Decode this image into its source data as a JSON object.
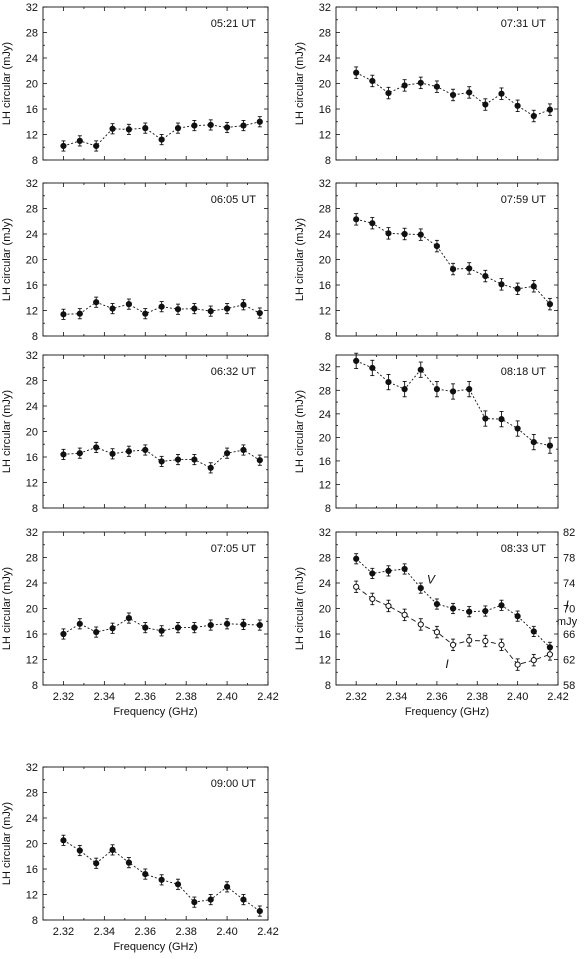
{
  "chart_data": [
    {
      "type": "line",
      "title": "05:21 UT",
      "xlabel": "",
      "ylabel": "LH circular (mJy)",
      "xlim": [
        2.31,
        2.42
      ],
      "ylim": [
        8,
        32
      ],
      "yticks": [
        8,
        12,
        16,
        20,
        24,
        28,
        32
      ],
      "xticks": [],
      "x": [
        2.32,
        2.328,
        2.336,
        2.344,
        2.352,
        2.36,
        2.368,
        2.376,
        2.384,
        2.392,
        2.4,
        2.408,
        2.416
      ],
      "series": [
        {
          "values": [
            10.2,
            11.0,
            10.2,
            12.9,
            12.8,
            13.0,
            11.2,
            13.0,
            13.4,
            13.5,
            13.1,
            13.4,
            14.0
          ],
          "err": [
            0.8,
            0.8,
            0.8,
            0.8,
            0.8,
            0.8,
            0.8,
            0.8,
            0.8,
            0.8,
            0.8,
            0.8,
            0.8
          ],
          "marker": "filled",
          "line": "dotted"
        }
      ]
    },
    {
      "type": "line",
      "title": "07:31 UT",
      "xlabel": "",
      "ylabel": "LH circular (mJy)",
      "xlim": [
        2.31,
        2.42
      ],
      "ylim": [
        8,
        32
      ],
      "yticks": [
        8,
        12,
        16,
        20,
        24,
        28,
        32
      ],
      "xticks": [],
      "x": [
        2.32,
        2.328,
        2.336,
        2.344,
        2.352,
        2.36,
        2.368,
        2.376,
        2.384,
        2.392,
        2.4,
        2.408,
        2.416
      ],
      "series": [
        {
          "values": [
            21.7,
            20.4,
            18.5,
            19.7,
            20.1,
            19.5,
            18.2,
            18.6,
            16.7,
            18.4,
            16.5,
            14.9,
            15.9
          ],
          "err": [
            0.9,
            0.9,
            0.9,
            0.9,
            0.9,
            0.9,
            0.9,
            0.9,
            0.9,
            0.9,
            0.9,
            0.9,
            0.9
          ],
          "marker": "filled",
          "line": "dotted"
        }
      ]
    },
    {
      "type": "line",
      "title": "06:05 UT",
      "xlabel": "",
      "ylabel": "LH circular (mJy)",
      "xlim": [
        2.31,
        2.42
      ],
      "ylim": [
        8,
        32
      ],
      "yticks": [
        8,
        12,
        16,
        20,
        24,
        28,
        32
      ],
      "xticks": [],
      "x": [
        2.32,
        2.328,
        2.336,
        2.344,
        2.352,
        2.36,
        2.368,
        2.376,
        2.384,
        2.392,
        2.4,
        2.408,
        2.416
      ],
      "series": [
        {
          "values": [
            11.4,
            11.5,
            13.3,
            12.3,
            13.0,
            11.5,
            12.6,
            12.2,
            12.3,
            11.9,
            12.3,
            12.9,
            11.6
          ],
          "err": [
            0.8,
            0.8,
            0.8,
            0.8,
            0.8,
            0.8,
            0.8,
            0.8,
            0.8,
            0.8,
            0.8,
            0.8,
            0.8
          ],
          "marker": "filled",
          "line": "dotted"
        }
      ]
    },
    {
      "type": "line",
      "title": "07:59 UT",
      "xlabel": "",
      "ylabel": "LH circular (mJy)",
      "xlim": [
        2.31,
        2.42
      ],
      "ylim": [
        8,
        32
      ],
      "yticks": [
        8,
        12,
        16,
        20,
        24,
        28,
        32
      ],
      "xticks": [],
      "x": [
        2.32,
        2.328,
        2.336,
        2.344,
        2.352,
        2.36,
        2.368,
        2.376,
        2.384,
        2.392,
        2.4,
        2.408,
        2.416
      ],
      "series": [
        {
          "values": [
            26.3,
            25.7,
            24.1,
            24.0,
            23.9,
            22.1,
            18.5,
            18.6,
            17.4,
            16.1,
            15.4,
            15.8,
            13.0
          ],
          "err": [
            0.9,
            0.9,
            0.9,
            0.9,
            0.9,
            0.9,
            0.9,
            0.9,
            0.9,
            0.9,
            0.9,
            0.9,
            0.9
          ],
          "marker": "filled",
          "line": "dotted"
        }
      ]
    },
    {
      "type": "line",
      "title": "06:32 UT",
      "xlabel": "",
      "ylabel": "LH circular (mJy)",
      "xlim": [
        2.31,
        2.42
      ],
      "ylim": [
        8,
        32
      ],
      "yticks": [
        8,
        12,
        16,
        20,
        24,
        28,
        32
      ],
      "xticks": [],
      "x": [
        2.32,
        2.328,
        2.336,
        2.344,
        2.352,
        2.36,
        2.368,
        2.376,
        2.384,
        2.392,
        2.4,
        2.408,
        2.416
      ],
      "series": [
        {
          "values": [
            16.4,
            16.6,
            17.5,
            16.5,
            16.9,
            17.1,
            15.3,
            15.6,
            15.6,
            14.3,
            16.6,
            17.1,
            15.5
          ],
          "err": [
            0.8,
            0.8,
            0.8,
            0.8,
            0.8,
            0.8,
            0.8,
            0.8,
            0.8,
            0.8,
            0.8,
            0.8,
            0.8
          ],
          "marker": "filled",
          "line": "dotted"
        }
      ]
    },
    {
      "type": "line",
      "title": "08:18 UT",
      "xlabel": "",
      "ylabel": "LH circular (mJy)",
      "xlim": [
        2.31,
        2.42
      ],
      "ylim": [
        8,
        34
      ],
      "yticks": [
        8,
        12,
        16,
        20,
        24,
        28,
        32
      ],
      "xticks": [],
      "x": [
        2.32,
        2.328,
        2.336,
        2.344,
        2.352,
        2.36,
        2.368,
        2.376,
        2.384,
        2.392,
        2.4,
        2.408,
        2.416
      ],
      "series": [
        {
          "values": [
            33.0,
            31.8,
            29.4,
            28.2,
            31.5,
            28.2,
            27.8,
            28.2,
            23.2,
            23.1,
            21.5,
            19.2,
            18.6
          ],
          "err": [
            1.3,
            1.3,
            1.3,
            1.3,
            1.3,
            1.3,
            1.3,
            1.3,
            1.3,
            1.3,
            1.3,
            1.3,
            1.3
          ],
          "marker": "filled",
          "line": "dotted"
        }
      ]
    },
    {
      "type": "line",
      "title": "07:05 UT",
      "xlabel": "Frequency (GHz)",
      "ylabel": "LH circular (mJy)",
      "xlim": [
        2.31,
        2.42
      ],
      "ylim": [
        8,
        32
      ],
      "yticks": [
        8,
        12,
        16,
        20,
        24,
        28,
        32
      ],
      "xticks": [
        "2.32",
        "2.34",
        "2.36",
        "2.38",
        "2.40",
        "2.42"
      ],
      "x": [
        2.32,
        2.328,
        2.336,
        2.344,
        2.352,
        2.36,
        2.368,
        2.376,
        2.384,
        2.392,
        2.4,
        2.408,
        2.416
      ],
      "series": [
        {
          "values": [
            16.0,
            17.6,
            16.3,
            16.9,
            18.5,
            17.0,
            16.5,
            17.0,
            17.0,
            17.4,
            17.6,
            17.5,
            17.4
          ],
          "err": [
            0.8,
            0.8,
            0.8,
            0.8,
            0.8,
            0.8,
            0.8,
            0.8,
            0.8,
            0.8,
            0.8,
            0.8,
            0.8
          ],
          "marker": "filled",
          "line": "dotted"
        }
      ]
    },
    {
      "type": "line",
      "title": "08:33 UT",
      "xlabel": "Frequency (GHz)",
      "ylabel": "LH circular (mJy)",
      "y2label": "I mJy",
      "xlim": [
        2.31,
        2.42
      ],
      "ylim": [
        8,
        32
      ],
      "y2lim": [
        58,
        82
      ],
      "yticks": [
        8,
        12,
        16,
        20,
        24,
        28,
        32
      ],
      "y2ticks": [
        58,
        62,
        66,
        70,
        74,
        78,
        82
      ],
      "xticks": [
        "2.32",
        "2.34",
        "2.36",
        "2.38",
        "2.40",
        "2.42"
      ],
      "x": [
        2.32,
        2.328,
        2.336,
        2.344,
        2.352,
        2.36,
        2.368,
        2.376,
        2.384,
        2.392,
        2.4,
        2.408,
        2.416
      ],
      "series": [
        {
          "name": "V",
          "axis": "left",
          "values": [
            27.8,
            25.5,
            25.9,
            26.2,
            23.2,
            20.7,
            20.0,
            19.5,
            19.6,
            20.5,
            18.8,
            16.4,
            13.9
          ],
          "err": [
            0.8,
            0.8,
            0.8,
            0.8,
            0.8,
            0.8,
            0.8,
            0.8,
            0.8,
            0.8,
            0.8,
            0.8,
            0.8
          ],
          "marker": "filled",
          "line": "dotted"
        },
        {
          "name": "I",
          "axis": "right",
          "values": [
            73.4,
            71.5,
            70.4,
            69.0,
            67.5,
            66.3,
            64.3,
            65.0,
            64.9,
            64.3,
            61.2,
            61.9,
            62.8
          ],
          "err": [
            0.9,
            0.9,
            0.9,
            0.9,
            0.9,
            0.9,
            0.9,
            0.9,
            0.9,
            0.9,
            0.9,
            0.9,
            0.9
          ],
          "marker": "open",
          "line": "dashed"
        }
      ]
    },
    {
      "type": "line",
      "title": "09:00 UT",
      "xlabel": "Frequency (GHz)",
      "ylabel": "LH circular (mJy)",
      "xlim": [
        2.31,
        2.42
      ],
      "ylim": [
        8,
        32
      ],
      "yticks": [
        8,
        12,
        16,
        20,
        24,
        28,
        32
      ],
      "xticks": [
        "2.32",
        "2.34",
        "2.36",
        "2.38",
        "2.40",
        "2.42"
      ],
      "x": [
        2.32,
        2.328,
        2.336,
        2.344,
        2.352,
        2.36,
        2.368,
        2.376,
        2.384,
        2.392,
        2.4,
        2.408,
        2.416
      ],
      "series": [
        {
          "values": [
            20.5,
            18.9,
            16.9,
            19.0,
            17.0,
            15.2,
            14.3,
            13.6,
            10.8,
            11.2,
            13.2,
            11.2,
            9.4
          ],
          "err": [
            0.8,
            0.8,
            0.8,
            0.8,
            0.8,
            0.8,
            0.8,
            0.8,
            0.8,
            0.8,
            0.8,
            0.8,
            0.8
          ],
          "marker": "filled",
          "line": "dotted"
        }
      ]
    }
  ]
}
